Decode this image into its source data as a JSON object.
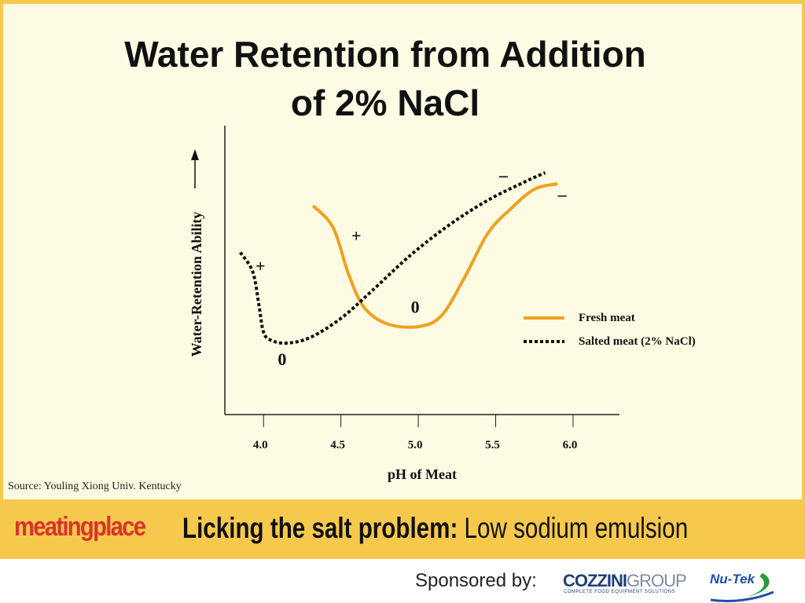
{
  "slide": {
    "title_line1": "Water Retention from Addition",
    "title_line2": "of 2% NaCl",
    "source": "Source: Youling Xiong Univ. Kentucky"
  },
  "banner": {
    "brand": "meatingplace",
    "headline_bold": "Licking the salt problem:",
    "headline_rest": " Low sodium emulsion"
  },
  "footer": {
    "sponsored_label": "Sponsored by:",
    "sponsor1_main": "COZZINI",
    "sponsor1_group": "GROUP",
    "sponsor1_tagline": "COMPLETE FOOD EQUIPMENT SOLUTIONS",
    "sponsor2": "Nu-Tek"
  },
  "chart_data": {
    "type": "line",
    "xlabel": "pH of Meat",
    "ylabel": "Water-Retention Ability",
    "x_ticks": [
      "4.0",
      "4.5",
      "5.0",
      "5.5",
      "6.0"
    ],
    "xlim": [
      3.75,
      6.3
    ],
    "ylim": [
      0,
      1
    ],
    "grid": false,
    "legend_position": "right",
    "series": [
      {
        "name": "Fresh meat",
        "style": "solid",
        "color": "#f0a020",
        "points": [
          [
            4.32,
            0.68
          ],
          [
            4.45,
            0.6
          ],
          [
            4.55,
            0.43
          ],
          [
            4.65,
            0.31
          ],
          [
            4.8,
            0.25
          ],
          [
            5.0,
            0.24
          ],
          [
            5.15,
            0.28
          ],
          [
            5.3,
            0.42
          ],
          [
            5.45,
            0.58
          ],
          [
            5.6,
            0.67
          ],
          [
            5.75,
            0.74
          ],
          [
            5.9,
            0.76
          ]
        ]
      },
      {
        "name": "Salted meat (2% NaCl)",
        "style": "dotted",
        "color": "#111111",
        "points": [
          [
            3.85,
            0.51
          ],
          [
            3.93,
            0.44
          ],
          [
            3.97,
            0.32
          ],
          [
            4.0,
            0.22
          ],
          [
            4.05,
            0.19
          ],
          [
            4.15,
            0.18
          ],
          [
            4.3,
            0.2
          ],
          [
            4.5,
            0.27
          ],
          [
            4.7,
            0.37
          ],
          [
            4.95,
            0.5
          ],
          [
            5.2,
            0.61
          ],
          [
            5.45,
            0.7
          ],
          [
            5.7,
            0.77
          ],
          [
            5.82,
            0.8
          ]
        ]
      }
    ],
    "annotations": [
      {
        "text": "+",
        "x": 3.98,
        "y": 0.44
      },
      {
        "text": "0",
        "x": 4.12,
        "y": 0.1
      },
      {
        "text": "+",
        "x": 4.6,
        "y": 0.55
      },
      {
        "text": "0",
        "x": 4.98,
        "y": 0.29
      },
      {
        "text": "–",
        "x": 5.55,
        "y": 0.77
      },
      {
        "text": "–",
        "x": 5.93,
        "y": 0.7
      }
    ]
  }
}
